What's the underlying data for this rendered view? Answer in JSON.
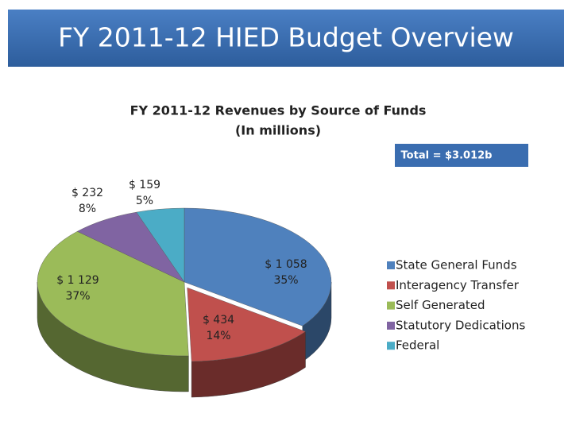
{
  "header": {
    "title": "FY 2011-12 HIED Budget Overview"
  },
  "chart_data": {
    "type": "pie3d",
    "title": "FY 2011-12 Revenues by Source of Funds",
    "subtitle": "(In millions)",
    "annotation": "Total = $3.012b",
    "categories": [
      "State General Funds",
      "Interagency Transfer",
      "Self Generated",
      "Statutory Dedications",
      "Federal"
    ],
    "values": [
      1058,
      434,
      1129,
      232,
      159
    ],
    "value_labels": [
      "$ 1 058",
      "$ 434",
      "$ 1 129",
      "$ 232",
      "$ 159"
    ],
    "percents": [
      35,
      14,
      37,
      8,
      5
    ],
    "percent_labels": [
      "35%",
      "14%",
      "37%",
      "8%",
      "5%"
    ],
    "colors": [
      "#4f81bd",
      "#c0504d",
      "#9bbb59",
      "#8064a2",
      "#4bacc6"
    ],
    "legend": "right"
  }
}
